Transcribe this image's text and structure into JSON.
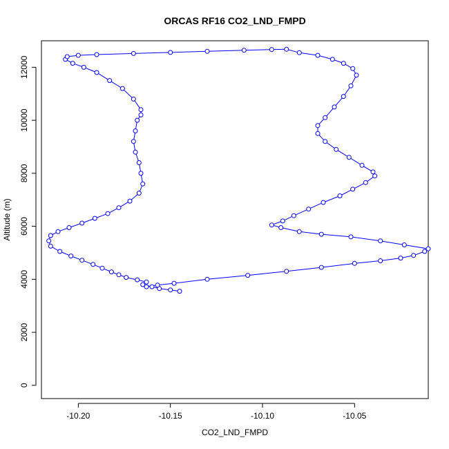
{
  "chart_data": {
    "type": "line",
    "title": "ORCAS RF16 CO2_LND_FMPD",
    "xlabel": "CO2_LND_FMPD",
    "ylabel": "Altitude (m)",
    "xlim": [
      -10.22,
      -10.01
    ],
    "ylim": [
      -500,
      13000
    ],
    "x_ticks": [
      -10.2,
      -10.15,
      -10.1,
      -10.05
    ],
    "x_tick_labels": [
      "-10.20",
      "-10.15",
      "-10.10",
      "-10.05"
    ],
    "y_ticks": [
      0,
      2000,
      4000,
      6000,
      8000,
      10000,
      12000
    ],
    "y_tick_labels": [
      "0",
      "2000",
      "4000",
      "6000",
      "8000",
      "10000",
      "12000"
    ],
    "grid": false,
    "legend": "none",
    "series": [
      {
        "color": "#0000ff",
        "marker": "open-circle",
        "x": [
          -10.145,
          -10.15,
          -10.156,
          -10.16,
          -10.165,
          -10.163,
          -10.168,
          -10.174,
          -10.178,
          -10.182,
          -10.187,
          -10.192,
          -10.198,
          -10.204,
          -10.21,
          -10.215,
          -10.216,
          -10.215,
          -10.211,
          -10.205,
          -10.198,
          -10.191,
          -10.184,
          -10.178,
          -10.172,
          -10.167,
          -10.165,
          -10.166,
          -10.167,
          -10.169,
          -10.17,
          -10.169,
          -10.168,
          -10.166,
          -10.166,
          -10.17,
          -10.176,
          -10.183,
          -10.19,
          -10.197,
          -10.203,
          -10.207,
          -10.206,
          -10.2,
          -10.19,
          -10.17,
          -10.15,
          -10.13,
          -10.11,
          -10.095,
          -10.087,
          -10.08,
          -10.07,
          -10.062,
          -10.056,
          -10.051,
          -10.049,
          -10.052,
          -10.056,
          -10.061,
          -10.066,
          -10.07,
          -10.07,
          -10.066,
          -10.06,
          -10.053,
          -10.046,
          -10.04,
          -10.039,
          -10.044,
          -10.051,
          -10.058,
          -10.067,
          -10.075,
          -10.083,
          -10.089,
          -10.095,
          -10.09,
          -10.08,
          -10.068,
          -10.052,
          -10.036,
          -10.023,
          -10.01,
          -10.012,
          -10.018,
          -10.025,
          -10.036,
          -10.05,
          -10.068,
          -10.087,
          -10.108,
          -10.13,
          -10.148,
          -10.157,
          -10.163
        ],
        "y": [
          3550,
          3600,
          3650,
          3720,
          3800,
          3900,
          3980,
          4070,
          4170,
          4280,
          4420,
          4560,
          4720,
          4880,
          5050,
          5250,
          5450,
          5650,
          5800,
          5950,
          6120,
          6300,
          6480,
          6700,
          6950,
          7250,
          7600,
          8000,
          8400,
          8800,
          9200,
          9600,
          10000,
          10200,
          10400,
          10800,
          11200,
          11500,
          11800,
          12000,
          12150,
          12300,
          12400,
          12450,
          12480,
          12520,
          12560,
          12600,
          12640,
          12670,
          12680,
          12550,
          12450,
          12300,
          12150,
          11950,
          11700,
          11300,
          10900,
          10500,
          10100,
          9800,
          9500,
          9200,
          8900,
          8600,
          8300,
          8050,
          7900,
          7650,
          7400,
          7150,
          6900,
          6650,
          6400,
          6200,
          6050,
          5950,
          5800,
          5700,
          5600,
          5450,
          5300,
          5150,
          5050,
          4900,
          4800,
          4700,
          4600,
          4450,
          4300,
          4150,
          4000,
          3850,
          3780,
          3720
        ]
      }
    ]
  }
}
